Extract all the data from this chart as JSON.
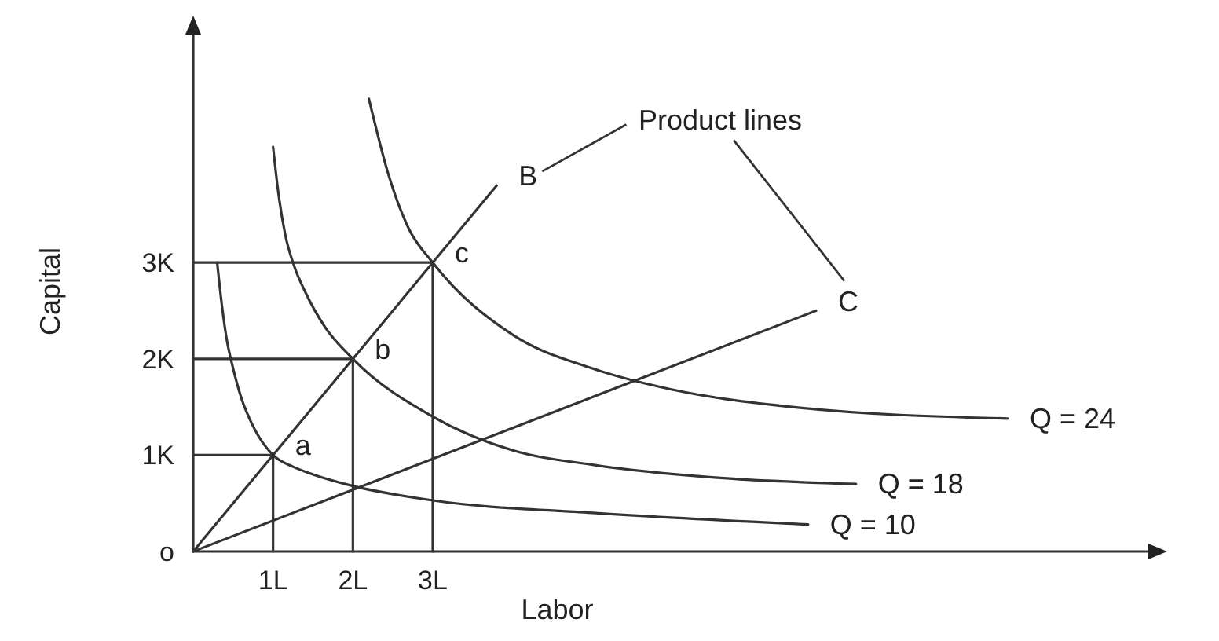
{
  "chart_data": {
    "type": "line",
    "xlabel": "Labor",
    "ylabel": "Capital",
    "xlim": [
      0,
      12
    ],
    "ylim": [
      0,
      5.4
    ],
    "xticks": [
      {
        "value": 1,
        "label": "1L"
      },
      {
        "value": 2,
        "label": "2L"
      },
      {
        "value": 3,
        "label": "3L"
      }
    ],
    "yticks": [
      {
        "value": 0,
        "label": "o"
      },
      {
        "value": 1,
        "label": "1K"
      },
      {
        "value": 2,
        "label": "2K"
      },
      {
        "value": 3,
        "label": "3K"
      }
    ],
    "series": [
      {
        "name": "Q = 24",
        "color": "#333333",
        "x": [
          2.2,
          2.45,
          2.7,
          3,
          4,
          5,
          6,
          7.5,
          10.2
        ],
        "values": [
          4.7,
          3.9,
          3.35,
          3,
          2.25,
          1.9,
          1.68,
          1.5,
          1.38
        ]
      },
      {
        "name": "Q = 18",
        "color": "#333333",
        "x": [
          1,
          1.07,
          1.15,
          1.27,
          1.4,
          1.65,
          2,
          3,
          4,
          5,
          6.5,
          8.3
        ],
        "values": [
          4.2,
          3.7,
          3.3,
          2.95,
          2.7,
          2.33,
          2,
          1.4,
          1.05,
          0.9,
          0.77,
          0.7
        ]
      },
      {
        "name": "Q = 10",
        "color": "#333333",
        "x": [
          0.3,
          0.36,
          0.42,
          0.5,
          0.6,
          0.75,
          1,
          1.25,
          1.5,
          2,
          3,
          5,
          7.7
        ],
        "values": [
          3,
          2.55,
          2.2,
          1.9,
          1.6,
          1.3,
          1,
          0.88,
          0.8,
          0.68,
          0.53,
          0.4,
          0.28
        ]
      },
      {
        "color": "#333333",
        "x": [
          0,
          3.8
        ],
        "values": [
          0,
          3.8
        ]
      },
      {
        "color": "#333333",
        "x": [
          0,
          7.8
        ],
        "values": [
          0,
          2.5
        ]
      },
      {
        "color": "#333333",
        "x": [
          0,
          1,
          1
        ],
        "values": [
          1,
          1,
          0
        ]
      },
      {
        "color": "#333333",
        "x": [
          0,
          2,
          2
        ],
        "values": [
          2,
          2,
          0
        ]
      },
      {
        "color": "#333333",
        "x": [
          0,
          3,
          3
        ],
        "values": [
          3,
          3,
          0
        ]
      }
    ],
    "annotations": [
      "Product lines",
      {
        "text": "B",
        "x": 3.8,
        "y": 3.8
      },
      {
        "text": "C",
        "x": 7.8,
        "y": 2.5
      },
      {
        "text": "a",
        "x": 1,
        "y": 1
      },
      {
        "text": "b",
        "x": 2,
        "y": 2
      },
      {
        "text": "c",
        "x": 3,
        "y": 3
      }
    ]
  }
}
